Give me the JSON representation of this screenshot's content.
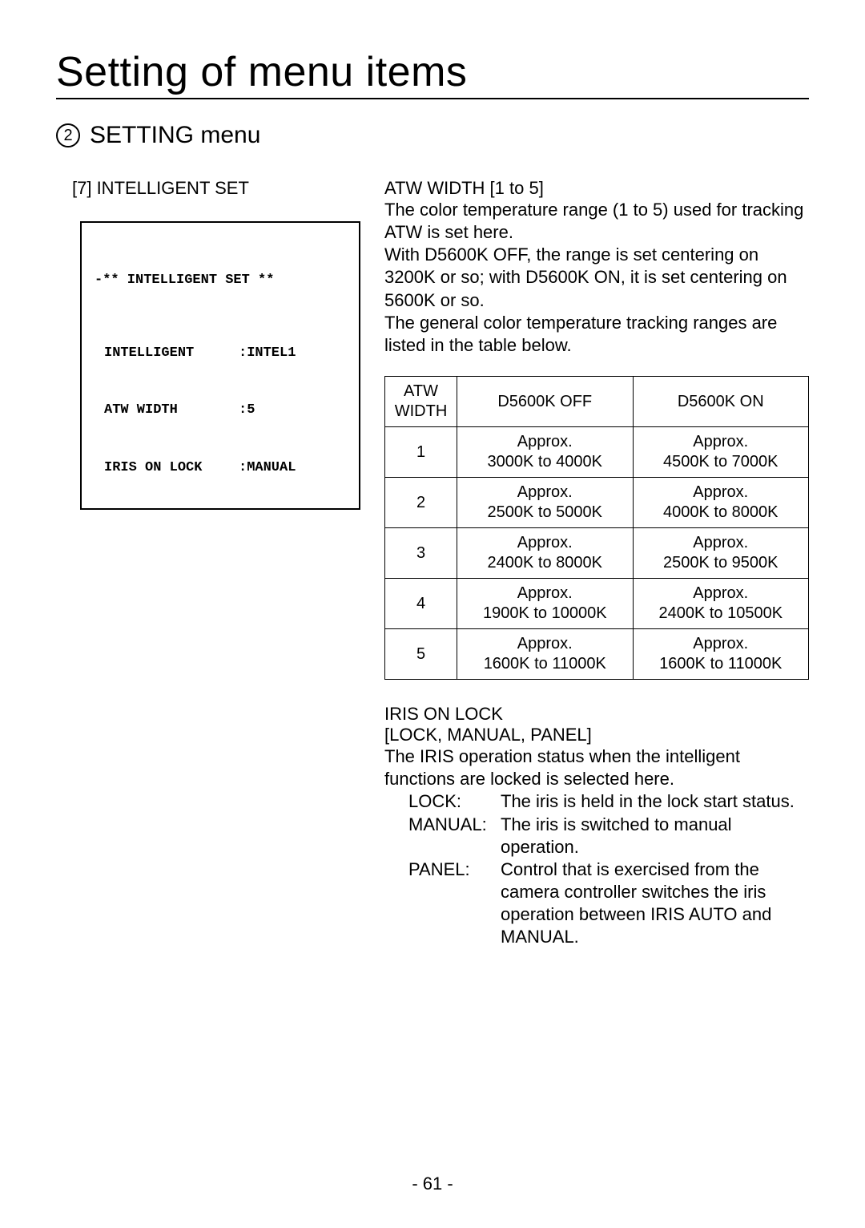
{
  "page": {
    "title": "Setting of menu items",
    "circled_number": "2",
    "subtitle": "SETTING menu",
    "section_label": "[7] INTELLIGENT SET",
    "page_number": "- 61 -"
  },
  "menu_box": {
    "header": "-** INTELLIGENT SET **",
    "rows": [
      {
        "key": "INTELLIGENT",
        "value": "INTEL1"
      },
      {
        "key": "ATW WIDTH",
        "value": "5"
      },
      {
        "key": "IRIS ON LOCK",
        "value": "MANUAL"
      }
    ]
  },
  "atw": {
    "heading": "ATW WIDTH [1 to 5]",
    "p1": "The color temperature range (1 to 5) used for tracking ATW is set here.",
    "p2": "With D5600K OFF, the range is set centering on 3200K or so; with D5600K ON, it is set centering on 5600K or so.",
    "p3": "The general color temperature tracking ranges are listed in the table below."
  },
  "atw_table": {
    "columns": [
      "ATW WIDTH",
      "D5600K OFF",
      "D5600K ON"
    ],
    "rows": [
      {
        "w": "1",
        "off_a": "Approx.",
        "off_b": "3000K to 4000K",
        "on_a": "Approx.",
        "on_b": "4500K to 7000K"
      },
      {
        "w": "2",
        "off_a": "Approx.",
        "off_b": "2500K to 5000K",
        "on_a": "Approx.",
        "on_b": "4000K to 8000K"
      },
      {
        "w": "3",
        "off_a": "Approx.",
        "off_b": "2400K to 8000K",
        "on_a": "Approx.",
        "on_b": "2500K to 9500K"
      },
      {
        "w": "4",
        "off_a": "Approx.",
        "off_b": "1900K to 10000K",
        "on_a": "Approx.",
        "on_b": "2400K to 10500K"
      },
      {
        "w": "5",
        "off_a": "Approx.",
        "off_b": "1600K to 11000K",
        "on_a": "Approx.",
        "on_b": "1600K to 11000K"
      }
    ]
  },
  "iris": {
    "heading": "IRIS ON LOCK",
    "options_line": "[LOCK, MANUAL, PANEL]",
    "desc": "The IRIS operation status when the intelligent functions are locked is selected here.",
    "defs": [
      {
        "term": "LOCK:",
        "text": "The iris is held in the lock start status."
      },
      {
        "term": "MANUAL:",
        "text": "The iris is switched to manual operation."
      },
      {
        "term": "PANEL:",
        "text": "Control that is exercised from the camera controller switches the iris operation between IRIS AUTO and MANUAL."
      }
    ]
  },
  "styling": {
    "page_bg": "#ffffff",
    "text_color": "#000000",
    "border_color": "#000000",
    "title_fontsize": 52,
    "body_fontsize": 22,
    "mono_fontsize": 17,
    "table_fontsize": 20
  }
}
